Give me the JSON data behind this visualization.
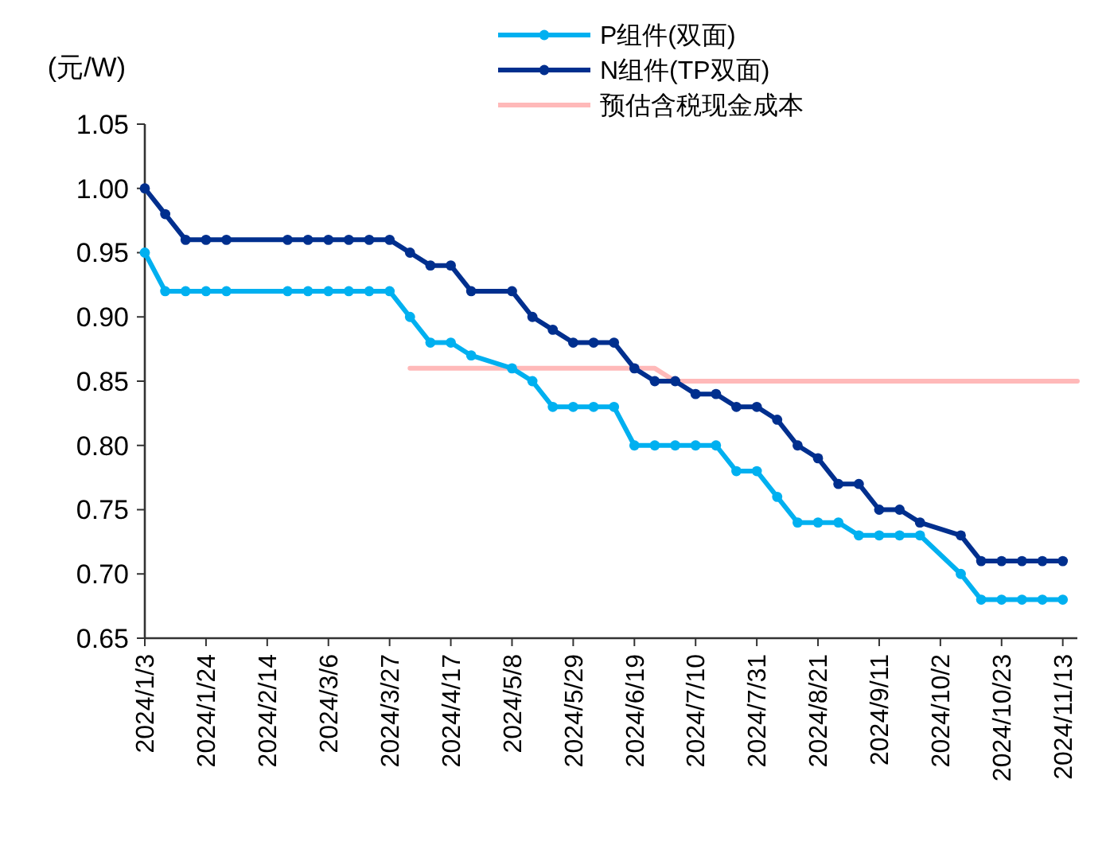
{
  "chart_data": {
    "type": "line",
    "ylabel": "(元/W)",
    "marker": "circle",
    "legend": "top",
    "grid": false,
    "x": [
      "2024-01-03",
      "2024-01-10",
      "2024-01-17",
      "2024-01-24",
      "2024-01-31",
      "2024-02-21",
      "2024-02-28",
      "2024-03-06",
      "2024-03-13",
      "2024-03-20",
      "2024-03-27",
      "2024-04-03",
      "2024-04-10",
      "2024-04-17",
      "2024-04-24",
      "2024-05-08",
      "2024-05-15",
      "2024-05-22",
      "2024-05-29",
      "2024-06-05",
      "2024-06-12",
      "2024-06-19",
      "2024-06-26",
      "2024-07-03",
      "2024-07-10",
      "2024-07-17",
      "2024-07-24",
      "2024-07-31",
      "2024-08-07",
      "2024-08-14",
      "2024-08-21",
      "2024-08-28",
      "2024-09-04",
      "2024-09-11",
      "2024-09-18",
      "2024-09-25",
      "2024-10-09",
      "2024-10-16",
      "2024-10-23",
      "2024-10-30",
      "2024-11-06",
      "2024-11-13"
    ],
    "series": [
      {
        "name": "P组件(双面)",
        "color": "#00b0f0",
        "values": [
          0.95,
          0.92,
          0.92,
          0.92,
          0.92,
          0.92,
          0.92,
          0.92,
          0.92,
          0.92,
          0.92,
          0.9,
          0.88,
          0.88,
          0.87,
          0.86,
          0.85,
          0.83,
          0.83,
          0.83,
          0.83,
          0.8,
          0.8,
          0.8,
          0.8,
          0.8,
          0.78,
          0.78,
          0.76,
          0.74,
          0.74,
          0.74,
          0.73,
          0.73,
          0.73,
          0.73,
          0.7,
          0.68,
          0.68,
          0.68,
          0.68,
          0.68
        ]
      },
      {
        "name": "N组件(TP双面)",
        "color": "#002f8e",
        "values": [
          1.0,
          0.98,
          0.96,
          0.96,
          0.96,
          0.96,
          0.96,
          0.96,
          0.96,
          0.96,
          0.96,
          0.95,
          0.94,
          0.94,
          0.92,
          0.92,
          0.9,
          0.89,
          0.88,
          0.88,
          0.88,
          0.86,
          0.85,
          0.85,
          0.84,
          0.84,
          0.83,
          0.83,
          0.82,
          0.8,
          0.79,
          0.77,
          0.77,
          0.75,
          0.75,
          0.74,
          0.73,
          0.71,
          0.71,
          0.71,
          0.71,
          0.71
        ]
      },
      {
        "name": "预估含税现金成本",
        "color": "#ffb9b9",
        "marker": "none",
        "x": [
          "2024-04-03",
          "2024-06-26",
          "2024-07-03",
          "2024-11-18"
        ],
        "values": [
          0.86,
          0.86,
          0.85,
          0.85
        ]
      }
    ],
    "xlim": [
      "2024-01-03",
      "2024-11-18"
    ],
    "xticks": [
      {
        "value": "2024-01-03",
        "label": "2024/1/3"
      },
      {
        "value": "2024-01-24",
        "label": "2024/1/24"
      },
      {
        "value": "2024-02-14",
        "label": "2024/2/14"
      },
      {
        "value": "2024-03-06",
        "label": "2024/3/6"
      },
      {
        "value": "2024-03-27",
        "label": "2024/3/27"
      },
      {
        "value": "2024-04-17",
        "label": "2024/4/17"
      },
      {
        "value": "2024-05-08",
        "label": "2024/5/8"
      },
      {
        "value": "2024-05-29",
        "label": "2024/5/29"
      },
      {
        "value": "2024-06-19",
        "label": "2024/6/19"
      },
      {
        "value": "2024-07-10",
        "label": "2024/7/10"
      },
      {
        "value": "2024-07-31",
        "label": "2024/7/31"
      },
      {
        "value": "2024-08-21",
        "label": "2024/8/21"
      },
      {
        "value": "2024-09-11",
        "label": "2024/9/11"
      },
      {
        "value": "2024-10-02",
        "label": "2024/10/2"
      },
      {
        "value": "2024-10-23",
        "label": "2024/10/23"
      },
      {
        "value": "2024-11-13",
        "label": "2024/11/13"
      }
    ],
    "ylim": [
      0.65,
      1.05
    ],
    "yticks": [
      {
        "value": 0.65,
        "label": "0.65"
      },
      {
        "value": 0.7,
        "label": "0.70"
      },
      {
        "value": 0.75,
        "label": "0.75"
      },
      {
        "value": 0.8,
        "label": "0.80"
      },
      {
        "value": 0.85,
        "label": "0.85"
      },
      {
        "value": 0.9,
        "label": "0.90"
      },
      {
        "value": 0.95,
        "label": "0.95"
      },
      {
        "value": 1.0,
        "label": "1.00"
      },
      {
        "value": 1.05,
        "label": "1.05"
      }
    ]
  }
}
